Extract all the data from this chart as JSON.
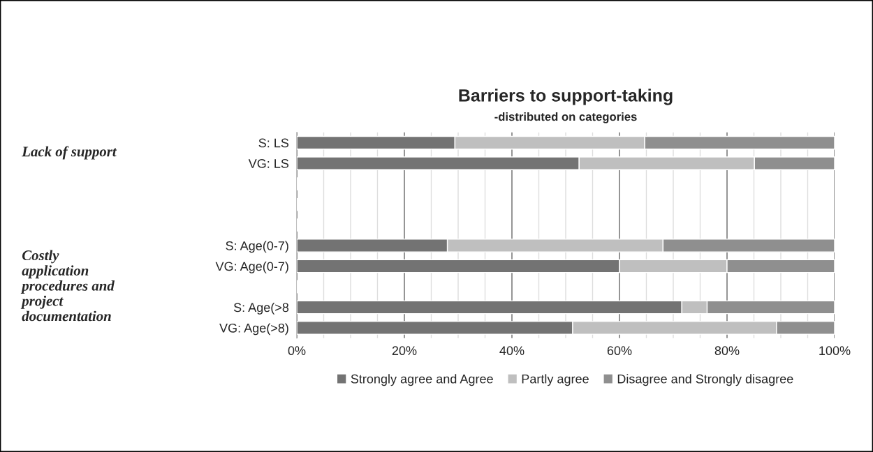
{
  "chart_data": {
    "type": "bar",
    "orientation": "horizontal",
    "stacked": true,
    "title": "Barriers to support-taking",
    "subtitle": "-distributed on categories",
    "categories": [
      "S: LS",
      "VG: LS",
      null,
      null,
      null,
      "S: Age(0-7)",
      "VG: Age(0-7)",
      null,
      "S: Age(>8",
      "VG: Age(>8)"
    ],
    "series": [
      {
        "name": "Strongly agree and Agree",
        "color": "#737373",
        "values": [
          29.4,
          52.5,
          null,
          null,
          null,
          28.0,
          60.0,
          null,
          71.6,
          51.3
        ]
      },
      {
        "name": "Partly agree",
        "color": "#bfbfbf",
        "values": [
          35.3,
          32.6,
          null,
          null,
          null,
          40.1,
          20.0,
          null,
          4.7,
          37.9
        ]
      },
      {
        "name": "Disagree and Strongly disagree",
        "color": "#8f8f8f",
        "values": [
          35.3,
          14.9,
          null,
          null,
          null,
          31.9,
          20.0,
          null,
          23.7,
          10.8
        ]
      }
    ],
    "xlim": [
      0,
      100
    ],
    "xticks": [
      {
        "value": 0,
        "label": "0%"
      },
      {
        "value": 5,
        "label": null
      },
      {
        "value": 10,
        "label": null
      },
      {
        "value": 15,
        "label": null
      },
      {
        "value": 20,
        "label": "20%"
      },
      {
        "value": 25,
        "label": null
      },
      {
        "value": 30,
        "label": null
      },
      {
        "value": 35,
        "label": null
      },
      {
        "value": 40,
        "label": "40%"
      },
      {
        "value": 45,
        "label": null
      },
      {
        "value": 50,
        "label": null
      },
      {
        "value": 55,
        "label": null
      },
      {
        "value": 60,
        "label": "60%"
      },
      {
        "value": 65,
        "label": null
      },
      {
        "value": 70,
        "label": null
      },
      {
        "value": 75,
        "label": null
      },
      {
        "value": 80,
        "label": "80%"
      },
      {
        "value": 85,
        "label": null
      },
      {
        "value": 90,
        "label": null
      },
      {
        "value": 95,
        "label": null
      },
      {
        "value": 100,
        "label": "100%"
      }
    ],
    "grid": "x",
    "legend": "bottom",
    "annotations": [
      "Lack of support",
      "Costly\napplication\nprocedures and\nproject\ndocumentation"
    ]
  }
}
